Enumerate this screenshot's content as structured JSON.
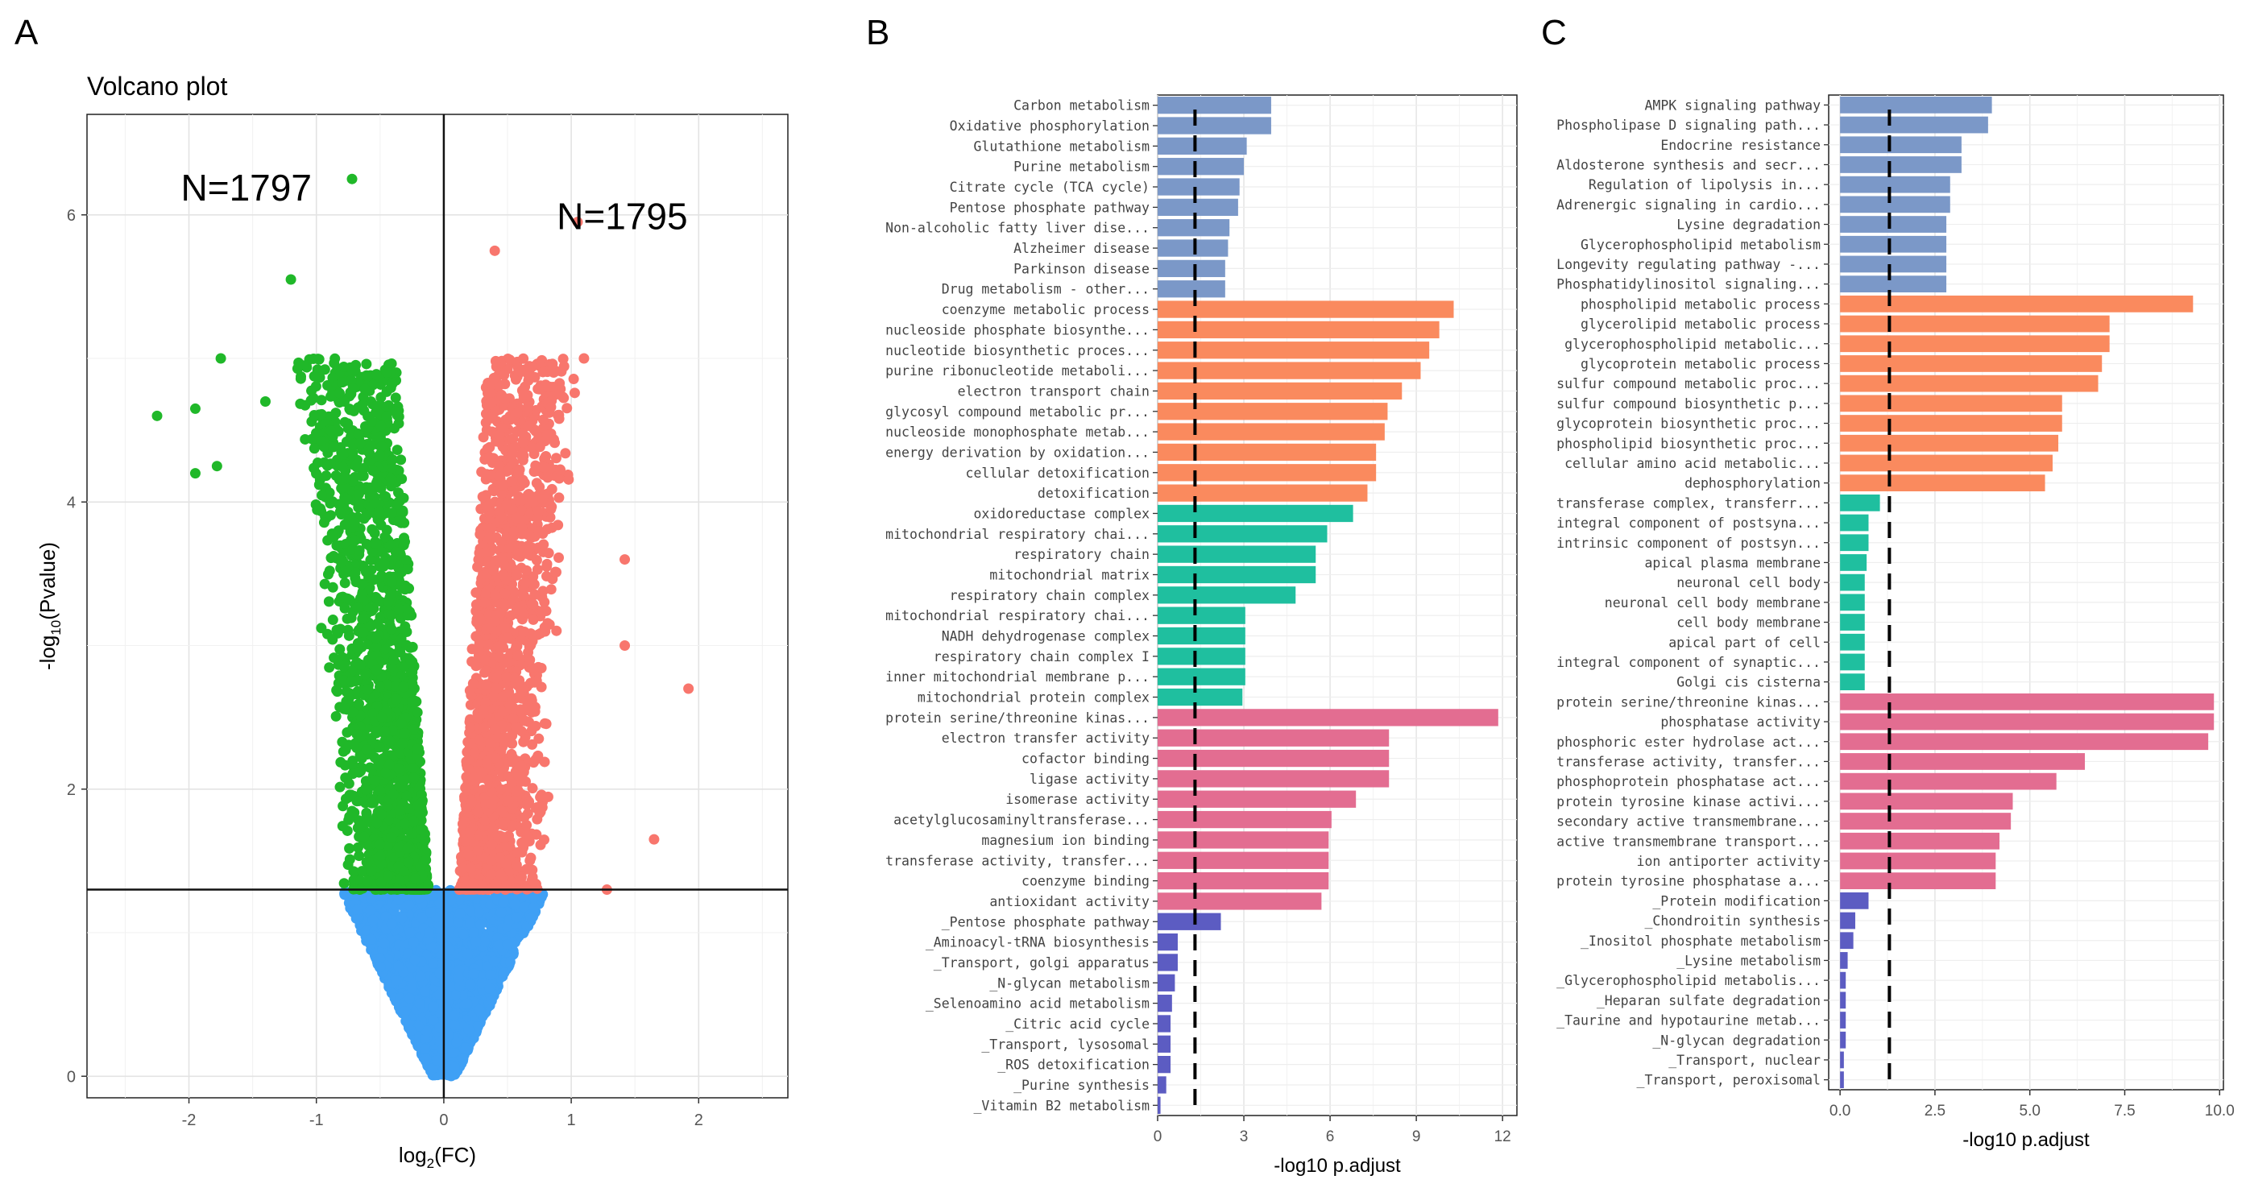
{
  "colors": {
    "up": "#f8766d",
    "down": "#20b829",
    "ns": "#3fa0f5",
    "kegg": "#7b98c8",
    "bp": "#fa8a5e",
    "cc": "#1fbf9f",
    "mf": "#e36d91",
    "reactome": "#5c5cc2"
  },
  "panels": {
    "a": "A",
    "b": "B",
    "c": "C"
  },
  "chart_data": [
    {
      "type": "scatter",
      "title": "Volcano plot",
      "xlabel_main": "log",
      "xlabel_sub": "2",
      "xlabel_rest": "(FC)",
      "ylabel_main": "-log",
      "ylabel_sub": "10",
      "ylabel_rest": "(Pvalue)",
      "xlim": [
        -2.8,
        2.7
      ],
      "ylim": [
        -0.15,
        6.7
      ],
      "xticks": [
        -2,
        -1,
        0,
        1,
        2
      ],
      "yticks": [
        0,
        2,
        4,
        6
      ],
      "vline": 0,
      "hline": 1.3,
      "annotations": [
        {
          "text": "N=1797",
          "x": -1.55,
          "y": 6.1
        },
        {
          "text": "N=1795",
          "x": 1.4,
          "y": 5.9
        }
      ],
      "groups": [
        {
          "name": "down",
          "count_label": "N=1797"
        },
        {
          "name": "up",
          "count_label": "N=1795"
        },
        {
          "name": "ns"
        }
      ],
      "outliers": [
        {
          "x": -0.72,
          "y": 6.25,
          "g": "down"
        },
        {
          "x": -1.2,
          "y": 5.55,
          "g": "down"
        },
        {
          "x": -2.25,
          "y": 4.6,
          "g": "down"
        },
        {
          "x": -1.95,
          "y": 4.65,
          "g": "down"
        },
        {
          "x": -1.75,
          "y": 5.0,
          "g": "down"
        },
        {
          "x": -1.78,
          "y": 4.25,
          "g": "down"
        },
        {
          "x": -1.95,
          "y": 4.2,
          "g": "down"
        },
        {
          "x": -1.4,
          "y": 4.7,
          "g": "down"
        },
        {
          "x": -1.1,
          "y": 4.95,
          "g": "down"
        },
        {
          "x": 0.4,
          "y": 5.75,
          "g": "up"
        },
        {
          "x": 1.05,
          "y": 5.95,
          "g": "up"
        },
        {
          "x": 1.1,
          "y": 5.0,
          "g": "up"
        },
        {
          "x": 1.42,
          "y": 3.6,
          "g": "up"
        },
        {
          "x": 1.42,
          "y": 3.0,
          "g": "up"
        },
        {
          "x": 1.92,
          "y": 2.7,
          "g": "up"
        },
        {
          "x": 1.65,
          "y": 1.65,
          "g": "up"
        },
        {
          "x": 1.28,
          "y": 1.3,
          "g": "up"
        }
      ]
    },
    {
      "type": "bar",
      "orientation": "horizontal",
      "xlabel": "-log10 p.adjust",
      "xlim": [
        0,
        12.5
      ],
      "xticks": [
        0,
        3,
        6,
        9,
        12
      ],
      "xtick_labels": [
        "0",
        "3",
        "6",
        "9",
        "12"
      ],
      "threshold": 1.3,
      "categories": [
        "Carbon metabolism",
        "Oxidative phosphorylation",
        "Glutathione metabolism",
        "Purine metabolism",
        "Citrate cycle (TCA cycle)",
        "Pentose phosphate pathway",
        "Non-alcoholic fatty liver dise...",
        "Alzheimer disease",
        "Parkinson disease",
        "Drug metabolism - other...",
        "coenzyme metabolic process",
        "nucleoside phosphate biosynthe...",
        "nucleotide biosynthetic proces...",
        "purine ribonucleotide metaboli...",
        "electron transport chain",
        "glycosyl compound metabolic pr...",
        "nucleoside monophosphate metab...",
        "energy derivation by oxidation...",
        "cellular detoxification",
        "detoxification",
        "oxidoreductase complex",
        "mitochondrial respiratory chai...",
        "respiratory chain",
        "mitochondrial matrix",
        "respiratory chain complex",
        "mitochondrial respiratory chai...",
        "NADH dehydrogenase complex",
        "respiratory chain complex I",
        "inner mitochondrial membrane p...",
        "mitochondrial protein complex",
        "protein serine/threonine kinas...",
        "electron transfer activity",
        "cofactor binding",
        "ligase activity",
        "isomerase activity",
        "acetylglucosaminyltransferase...",
        "magnesium ion binding",
        "transferase activity, transfer...",
        "coenzyme binding",
        "antioxidant activity",
        "_Pentose phosphate pathway",
        "_Aminoacyl-tRNA biosynthesis",
        "_Transport, golgi apparatus",
        "_N-glycan metabolism",
        "_Selenoamino acid metabolism",
        "_Citric acid cycle",
        "_Transport, lysosomal",
        "_ROS detoxification",
        "_Purine synthesis",
        "_Vitamin B2 metabolism"
      ],
      "values": [
        3.95,
        3.95,
        3.1,
        3.0,
        2.85,
        2.8,
        2.5,
        2.45,
        2.35,
        2.35,
        10.3,
        9.8,
        9.45,
        9.15,
        8.5,
        8.0,
        7.9,
        7.6,
        7.6,
        7.3,
        6.8,
        5.9,
        5.5,
        5.5,
        4.8,
        3.05,
        3.05,
        3.05,
        3.05,
        2.95,
        11.85,
        8.05,
        8.05,
        8.05,
        6.9,
        6.05,
        5.95,
        5.95,
        5.95,
        5.7,
        2.2,
        0.7,
        0.7,
        0.6,
        0.5,
        0.45,
        0.45,
        0.45,
        0.3,
        0.1
      ],
      "groups": [
        "kegg",
        "kegg",
        "kegg",
        "kegg",
        "kegg",
        "kegg",
        "kegg",
        "kegg",
        "kegg",
        "kegg",
        "bp",
        "bp",
        "bp",
        "bp",
        "bp",
        "bp",
        "bp",
        "bp",
        "bp",
        "bp",
        "cc",
        "cc",
        "cc",
        "cc",
        "cc",
        "cc",
        "cc",
        "cc",
        "cc",
        "cc",
        "mf",
        "mf",
        "mf",
        "mf",
        "mf",
        "mf",
        "mf",
        "mf",
        "mf",
        "mf",
        "reactome",
        "reactome",
        "reactome",
        "reactome",
        "reactome",
        "reactome",
        "reactome",
        "reactome",
        "reactome",
        "reactome"
      ]
    },
    {
      "type": "bar",
      "orientation": "horizontal",
      "xlabel": "-log10 p.adjust",
      "xlim": [
        -0.3,
        10.1
      ],
      "xticks": [
        0,
        2.5,
        5,
        7.5,
        10
      ],
      "xtick_labels": [
        "0.0",
        "2.5",
        "5.0",
        "7.5",
        "10.0"
      ],
      "threshold": 1.3,
      "categories": [
        "AMPK signaling pathway",
        "Phospholipase D signaling path...",
        "Endocrine resistance",
        "Aldosterone synthesis and secr...",
        "Regulation of lipolysis in...",
        "Adrenergic signaling in cardio...",
        "Lysine degradation",
        "Glycerophospholipid metabolism",
        "Longevity regulating pathway -...",
        "Phosphatidylinositol signaling...",
        "phospholipid metabolic process",
        "glycerolipid metabolic process",
        "glycerophospholipid metabolic...",
        "glycoprotein metabolic process",
        "sulfur compound metabolic proc...",
        "sulfur compound biosynthetic p...",
        "glycoprotein biosynthetic proc...",
        "phospholipid biosynthetic proc...",
        "cellular amino acid metabolic...",
        "dephosphorylation",
        "transferase complex, transferr...",
        "integral component of postsyna...",
        "intrinsic component of postsyn...",
        "apical plasma membrane",
        "neuronal cell body",
        "neuronal cell body membrane",
        "cell body membrane",
        "apical part of cell",
        "integral component of synaptic...",
        "Golgi cis cisterna",
        "protein serine/threonine kinas...",
        "phosphatase activity",
        "phosphoric ester hydrolase act...",
        "transferase activity, transfer...",
        "phosphoprotein phosphatase act...",
        "protein tyrosine kinase activi...",
        "secondary active transmembrane...",
        "active transmembrane transport...",
        "ion antiporter activity",
        "protein tyrosine phosphatase a...",
        "_Protein modification",
        "_Chondroitin synthesis",
        "_Inositol phosphate metabolism",
        "_Lysine metabolism",
        "_Glycerophospholipid metabolis...",
        "_Heparan sulfate degradation",
        "_Taurine and hypotaurine metab...",
        "_N-glycan degradation",
        "_Transport, nuclear",
        "_Transport, peroxisomal"
      ],
      "values": [
        4.0,
        3.9,
        3.2,
        3.2,
        2.9,
        2.9,
        2.8,
        2.8,
        2.8,
        2.8,
        9.3,
        7.1,
        7.1,
        6.9,
        6.8,
        5.85,
        5.85,
        5.75,
        5.6,
        5.4,
        1.05,
        0.75,
        0.75,
        0.7,
        0.65,
        0.65,
        0.65,
        0.65,
        0.65,
        0.65,
        9.85,
        9.85,
        9.7,
        6.45,
        5.7,
        4.55,
        4.5,
        4.2,
        4.1,
        4.1,
        0.75,
        0.4,
        0.35,
        0.2,
        0.15,
        0.15,
        0.15,
        0.15,
        0.1,
        0.1
      ],
      "groups": [
        "kegg",
        "kegg",
        "kegg",
        "kegg",
        "kegg",
        "kegg",
        "kegg",
        "kegg",
        "kegg",
        "kegg",
        "bp",
        "bp",
        "bp",
        "bp",
        "bp",
        "bp",
        "bp",
        "bp",
        "bp",
        "bp",
        "cc",
        "cc",
        "cc",
        "cc",
        "cc",
        "cc",
        "cc",
        "cc",
        "cc",
        "cc",
        "mf",
        "mf",
        "mf",
        "mf",
        "mf",
        "mf",
        "mf",
        "mf",
        "mf",
        "mf",
        "reactome",
        "reactome",
        "reactome",
        "reactome",
        "reactome",
        "reactome",
        "reactome",
        "reactome",
        "reactome",
        "reactome"
      ]
    }
  ]
}
